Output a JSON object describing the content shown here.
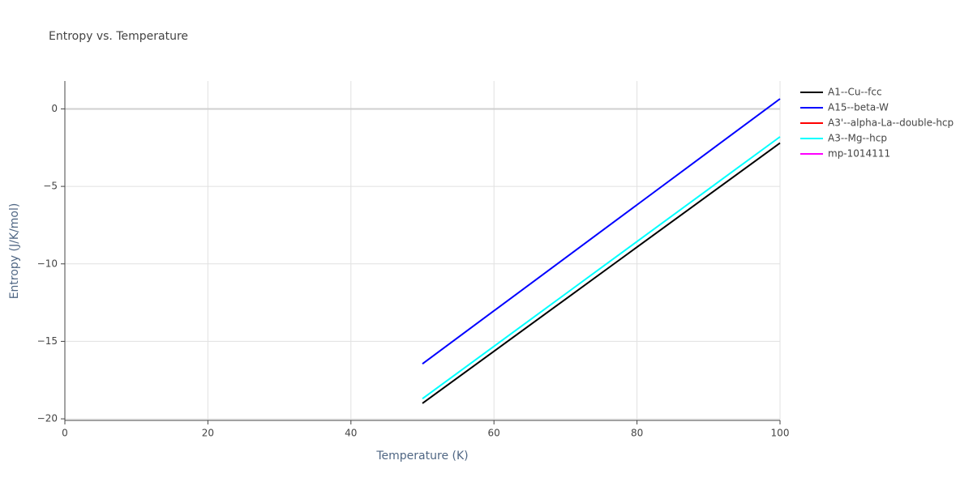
{
  "chart_data": {
    "type": "line",
    "title": "Entropy vs. Temperature",
    "x_label": "Temperature (K)",
    "y_label": "Entropy (J/K/mol)",
    "x": [
      50,
      60,
      70,
      80,
      90,
      100
    ],
    "series": [
      {
        "name": "A1--Cu--fcc",
        "color": "#000000",
        "values": [
          -19.0,
          -15.64,
          -12.28,
          -8.92,
          -5.56,
          -2.2
        ]
      },
      {
        "name": "A15--beta-W",
        "color": "#0000ff",
        "values": [
          -16.45,
          -13.03,
          -9.61,
          -6.19,
          -2.77,
          0.65
        ]
      },
      {
        "name": "A3'--alpha-La--double-hcp",
        "color": "#ff0000",
        "values": [
          null,
          null,
          null,
          null,
          null,
          null
        ]
      },
      {
        "name": "A3--Mg--hcp",
        "color": "#00ffff",
        "values": [
          -18.7,
          -15.32,
          -11.94,
          -8.56,
          -5.18,
          -1.8
        ]
      },
      {
        "name": "mp-1014111",
        "color": "#ff00ff",
        "values": [
          null,
          null,
          null,
          null,
          null,
          null
        ]
      }
    ],
    "xlim": [
      0,
      100
    ],
    "xticks": [
      0,
      20,
      40,
      60,
      80,
      100
    ],
    "ylim": [
      -20.1,
      1.8
    ],
    "yticks": [
      {
        "value": -20,
        "label": "−20"
      },
      {
        "value": -15,
        "label": "−15"
      },
      {
        "value": -10,
        "label": "−10"
      },
      {
        "value": -5,
        "label": "−5"
      },
      0
    ],
    "grid": true,
    "legend": "right"
  }
}
